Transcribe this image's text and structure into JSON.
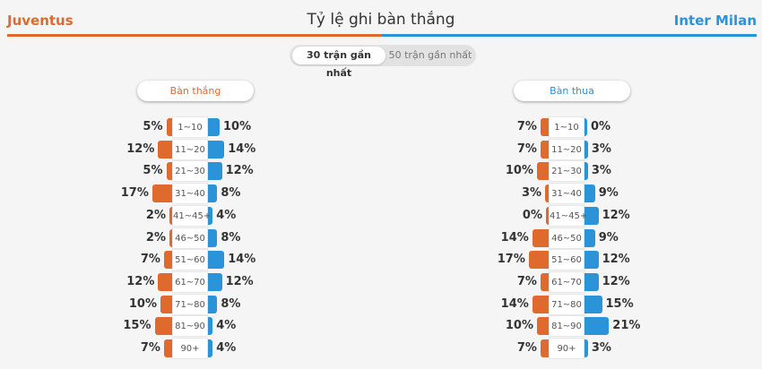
{
  "header": {
    "home_team": "Juventus",
    "away_team": "Inter Milan",
    "title": "Tỷ lệ ghi bàn thắng"
  },
  "tabs": [
    {
      "label": "30 trận gần nhất",
      "active": true
    },
    {
      "label": "50 trận gần nhất",
      "active": false
    }
  ],
  "colors": {
    "home": "#e06a2e",
    "away": "#2b93d8"
  },
  "panels": [
    {
      "label": "Bàn thắng",
      "rows": [
        {
          "interval": "1~10",
          "home": "5%",
          "away": "10%",
          "home_value": 5,
          "away_value": 10
        },
        {
          "interval": "11~20",
          "home": "12%",
          "away": "14%",
          "home_value": 12,
          "away_value": 14
        },
        {
          "interval": "21~30",
          "home": "5%",
          "away": "12%",
          "home_value": 5,
          "away_value": 12
        },
        {
          "interval": "31~40",
          "home": "17%",
          "away": "8%",
          "home_value": 17,
          "away_value": 8
        },
        {
          "interval": "41~45+",
          "home": "2%",
          "away": "4%",
          "home_value": 2,
          "away_value": 4
        },
        {
          "interval": "46~50",
          "home": "2%",
          "away": "8%",
          "home_value": 2,
          "away_value": 8
        },
        {
          "interval": "51~60",
          "home": "7%",
          "away": "14%",
          "home_value": 7,
          "away_value": 14
        },
        {
          "interval": "61~70",
          "home": "12%",
          "away": "12%",
          "home_value": 12,
          "away_value": 12
        },
        {
          "interval": "71~80",
          "home": "10%",
          "away": "8%",
          "home_value": 10,
          "away_value": 8
        },
        {
          "interval": "81~90",
          "home": "15%",
          "away": "4%",
          "home_value": 15,
          "away_value": 4
        },
        {
          "interval": "90+",
          "home": "7%",
          "away": "4%",
          "home_value": 7,
          "away_value": 4
        }
      ]
    },
    {
      "label": "Bàn thua",
      "rows": [
        {
          "interval": "1~10",
          "home": "7%",
          "away": "0%",
          "home_value": 7,
          "away_value": 0
        },
        {
          "interval": "11~20",
          "home": "7%",
          "away": "3%",
          "home_value": 7,
          "away_value": 3
        },
        {
          "interval": "21~30",
          "home": "10%",
          "away": "3%",
          "home_value": 10,
          "away_value": 3
        },
        {
          "interval": "31~40",
          "home": "3%",
          "away": "9%",
          "home_value": 3,
          "away_value": 9
        },
        {
          "interval": "41~45+",
          "home": "0%",
          "away": "12%",
          "home_value": 0,
          "away_value": 12
        },
        {
          "interval": "46~50",
          "home": "14%",
          "away": "9%",
          "home_value": 14,
          "away_value": 9
        },
        {
          "interval": "51~60",
          "home": "17%",
          "away": "12%",
          "home_value": 17,
          "away_value": 12
        },
        {
          "interval": "61~70",
          "home": "7%",
          "away": "12%",
          "home_value": 7,
          "away_value": 12
        },
        {
          "interval": "71~80",
          "home": "14%",
          "away": "15%",
          "home_value": 14,
          "away_value": 15
        },
        {
          "interval": "81~90",
          "home": "10%",
          "away": "21%",
          "home_value": 10,
          "away_value": 21
        },
        {
          "interval": "90+",
          "home": "7%",
          "away": "3%",
          "home_value": 7,
          "away_value": 3
        }
      ]
    }
  ]
}
